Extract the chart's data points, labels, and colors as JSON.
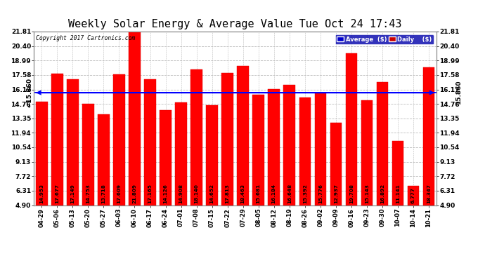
{
  "title": "Weekly Solar Energy & Average Value Tue Oct 24 17:43",
  "copyright": "Copyright 2017 Cartronics.com",
  "categories": [
    "04-29",
    "05-06",
    "05-13",
    "05-20",
    "05-27",
    "06-03",
    "06-10",
    "06-17",
    "06-24",
    "07-01",
    "07-08",
    "07-15",
    "07-22",
    "07-29",
    "08-05",
    "08-12",
    "08-19",
    "08-26",
    "09-02",
    "09-09",
    "09-16",
    "09-23",
    "09-30",
    "10-07",
    "10-14",
    "10-21"
  ],
  "values": [
    14.953,
    17.677,
    17.149,
    14.753,
    13.718,
    17.609,
    21.809,
    17.165,
    14.126,
    14.908,
    18.14,
    14.652,
    17.813,
    18.463,
    15.681,
    16.184,
    16.648,
    15.392,
    15.776,
    12.937,
    19.708,
    15.143,
    16.892,
    11.141,
    6.777,
    18.347
  ],
  "average_value": 15.86,
  "bar_color": "#ff0000",
  "bar_edge_color": "#dd0000",
  "average_line_color": "#0000ff",
  "background_color": "#ffffff",
  "plot_bg_color": "#ffffff",
  "grid_color": "#bbbbbb",
  "ylim_min": 4.9,
  "ylim_max": 21.81,
  "yticks": [
    4.9,
    6.31,
    7.72,
    9.13,
    10.54,
    11.94,
    13.35,
    14.76,
    16.17,
    17.58,
    18.99,
    20.4,
    21.81
  ],
  "avg_label": "15.860",
  "legend_avg_bg": "#0000cc",
  "legend_daily_bg": "#cc0000",
  "title_fontsize": 11,
  "bar_width": 0.75
}
